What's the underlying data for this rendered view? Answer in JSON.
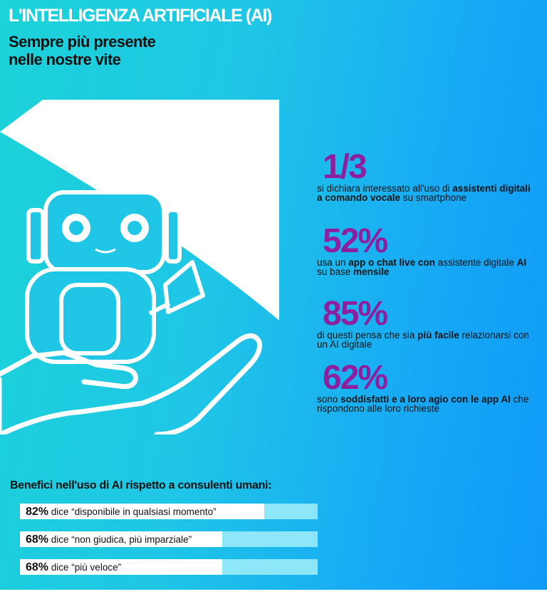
{
  "header": {
    "title": "L'INTELLIGENZA ARTIFICIALE (AI)",
    "subtitle_line1": "Sempre più presente",
    "subtitle_line2": "nelle nostre vite"
  },
  "stats": [
    {
      "value": "1/3",
      "parts": [
        "si dichiara interessato  all'uso di ",
        "assistenti digitali a comando vocale",
        " su smartphone"
      ]
    },
    {
      "value": "52%",
      "parts": [
        "usa un ",
        "app o chat live con",
        " assistente digitale ",
        "AI",
        " su base ",
        "mensile"
      ]
    },
    {
      "value": "85%",
      "parts": [
        "di questi pensa che sia ",
        "più facile",
        " relazionarsi con un AI digitale"
      ]
    },
    {
      "value": "62%",
      "parts": [
        "sono ",
        "soddisfatti e a loro agio con le app AI",
        " che rispondono alle loro richieste"
      ]
    }
  ],
  "benefits": {
    "title": "Benefici nell'uso di AI rispetto a consulenti umani:",
    "items": [
      {
        "pct": "82%",
        "text": " dice “disponibile in qualsiasi momento”",
        "value": 0.82
      },
      {
        "pct": "68%",
        "text": " dice “non giudica, più imparziale”",
        "value": 0.68
      },
      {
        "pct": "68%",
        "text": " dice “più veloce”",
        "value": 0.68
      }
    ]
  },
  "colors": {
    "accent": "#8e1f9e",
    "bar_track": "#8ee6f9",
    "bar_fill": "#ffffff"
  },
  "icons": [
    "heart-icon",
    "robot-icon",
    "hand-icon"
  ]
}
